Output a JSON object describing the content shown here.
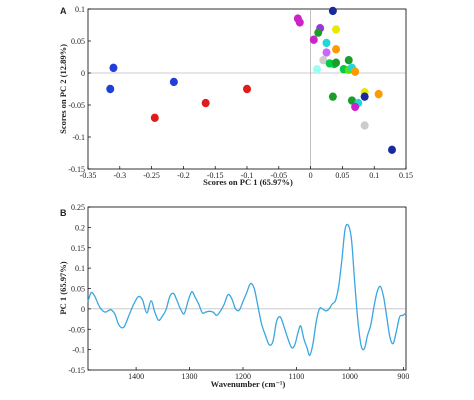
{
  "chart_data": [
    {
      "panel": "A",
      "type": "scatter",
      "xlabel": "Scores on PC 1 (65.97%)",
      "ylabel": "Scores on PC 2 (12.89%)",
      "xlim": [
        -0.35,
        0.15
      ],
      "ylim": [
        -0.15,
        0.1
      ],
      "xticks": [
        "-0.35",
        "-0.3",
        "-0.25",
        "-0.2",
        "-0.15",
        "-0.1",
        "-0.05",
        "0",
        "0.05",
        "0.1",
        "0.15"
      ],
      "yticks": [
        "0.1",
        "0.05",
        "0",
        "-0.05",
        "-0.1",
        "-0.15"
      ],
      "zero_lines": true,
      "points": [
        {
          "x": -0.31,
          "y": 0.008,
          "color": "#1f3fd8"
        },
        {
          "x": -0.315,
          "y": -0.025,
          "color": "#1f3fd8"
        },
        {
          "x": -0.215,
          "y": -0.014,
          "color": "#1f3fd8"
        },
        {
          "x": -0.245,
          "y": -0.07,
          "color": "#e01b1b"
        },
        {
          "x": -0.165,
          "y": -0.047,
          "color": "#e01b1b"
        },
        {
          "x": -0.1,
          "y": -0.025,
          "color": "#e01b1b"
        },
        {
          "x": -0.02,
          "y": 0.085,
          "color": "#cc22cc"
        },
        {
          "x": -0.017,
          "y": 0.079,
          "color": "#cc22cc"
        },
        {
          "x": 0.035,
          "y": 0.097,
          "color": "#1a2a9e"
        },
        {
          "x": 0.04,
          "y": 0.068,
          "color": "#e8e800"
        },
        {
          "x": 0.015,
          "y": 0.07,
          "color": "#9c33dd"
        },
        {
          "x": 0.012,
          "y": 0.063,
          "color": "#1a9e2a"
        },
        {
          "x": 0.005,
          "y": 0.052,
          "color": "#cc22cc"
        },
        {
          "x": 0.025,
          "y": 0.047,
          "color": "#1fd8d8"
        },
        {
          "x": 0.04,
          "y": 0.037,
          "color": "#ff9900"
        },
        {
          "x": 0.025,
          "y": 0.032,
          "color": "#cc66ff"
        },
        {
          "x": 0.02,
          "y": 0.02,
          "color": "#cccccc"
        },
        {
          "x": 0.03,
          "y": 0.015,
          "color": "#00cc44"
        },
        {
          "x": 0.037,
          "y": 0.014,
          "color": "#00cc44"
        },
        {
          "x": 0.04,
          "y": 0.016,
          "color": "#1a9e2a"
        },
        {
          "x": 0.01,
          "y": 0.006,
          "color": "#99ffee"
        },
        {
          "x": 0.06,
          "y": 0.02,
          "color": "#1a9e2a"
        },
        {
          "x": 0.052,
          "y": 0.006,
          "color": "#00cc44"
        },
        {
          "x": 0.06,
          "y": 0.005,
          "color": "#66dd00"
        },
        {
          "x": 0.065,
          "y": 0.008,
          "color": "#1fd8d8"
        },
        {
          "x": 0.07,
          "y": 0.002,
          "color": "#ff9900"
        },
        {
          "x": 0.085,
          "y": -0.03,
          "color": "#e8e800"
        },
        {
          "x": 0.085,
          "y": -0.037,
          "color": "#1a2a9e"
        },
        {
          "x": 0.107,
          "y": -0.033,
          "color": "#ff9900"
        },
        {
          "x": 0.035,
          "y": -0.037,
          "color": "#1a9e2a"
        },
        {
          "x": 0.065,
          "y": -0.043,
          "color": "#1a9e2a"
        },
        {
          "x": 0.075,
          "y": -0.047,
          "color": "#1fd8d8"
        },
        {
          "x": 0.07,
          "y": -0.053,
          "color": "#cc22cc"
        },
        {
          "x": 0.085,
          "y": -0.082,
          "color": "#cccccc"
        },
        {
          "x": 0.128,
          "y": -0.12,
          "color": "#1a2a9e"
        }
      ]
    },
    {
      "panel": "B",
      "type": "line",
      "xlabel": "Wavenumber (cm⁻¹)",
      "ylabel": "PC 1 (65.97%)",
      "xlim": [
        1490,
        895
      ],
      "ylim": [
        -0.15,
        0.25
      ],
      "xticks": [
        "1400",
        "1300",
        "1200",
        "1100",
        "1000",
        "900"
      ],
      "yticks": [
        "0.25",
        "0.2",
        "0.15",
        "0.1",
        "0.05",
        "0",
        "-0.05",
        "-0.1",
        "-0.15"
      ],
      "zero_line": true,
      "series": [
        {
          "color": "#3aa6df",
          "x": [
            1490,
            1484,
            1477,
            1468,
            1458,
            1448,
            1440,
            1432,
            1423,
            1414,
            1405,
            1396,
            1388,
            1380,
            1372,
            1365,
            1358,
            1351,
            1344,
            1337,
            1330,
            1324,
            1317,
            1310,
            1303,
            1296,
            1290,
            1283,
            1276,
            1270,
            1263,
            1256,
            1249,
            1242,
            1235,
            1228,
            1221,
            1214,
            1207,
            1200,
            1193,
            1186,
            1179,
            1172,
            1165,
            1158,
            1151,
            1144,
            1137,
            1130,
            1123,
            1116,
            1109,
            1103,
            1097,
            1092,
            1086,
            1080,
            1075,
            1069,
            1063,
            1057,
            1051,
            1045,
            1039,
            1033,
            1027,
            1021,
            1015,
            1009,
            1003,
            997,
            991,
            985,
            979,
            973,
            967,
            961,
            955,
            949,
            943,
            937,
            931,
            925,
            919,
            913,
            907,
            901,
            895
          ],
          "y": [
            0.018,
            0.04,
            0.03,
            0.004,
            -0.008,
            -0.002,
            -0.012,
            -0.04,
            -0.045,
            -0.018,
            0.01,
            0.03,
            0.022,
            -0.01,
            0.02,
            -0.008,
            -0.028,
            -0.018,
            -0.002,
            0.03,
            0.038,
            0.022,
            0.0,
            -0.012,
            0.018,
            0.042,
            0.03,
            0.012,
            -0.01,
            -0.008,
            -0.006,
            -0.008,
            -0.016,
            -0.005,
            0.012,
            0.035,
            0.025,
            0.0,
            -0.003,
            0.018,
            0.04,
            0.062,
            0.05,
            0.006,
            -0.038,
            -0.065,
            -0.088,
            -0.08,
            -0.03,
            -0.02,
            -0.045,
            -0.073,
            -0.095,
            -0.088,
            -0.058,
            -0.042,
            -0.074,
            -0.096,
            -0.114,
            -0.085,
            -0.032,
            0.0,
            0.0,
            -0.005,
            0.0,
            0.012,
            0.02,
            0.055,
            0.12,
            0.195,
            0.205,
            0.17,
            0.065,
            -0.03,
            -0.09,
            -0.098,
            -0.065,
            -0.04,
            0.005,
            0.042,
            0.055,
            0.03,
            -0.02,
            -0.07,
            -0.085,
            -0.055,
            -0.02,
            -0.016,
            -0.01
          ]
        }
      ]
    }
  ]
}
